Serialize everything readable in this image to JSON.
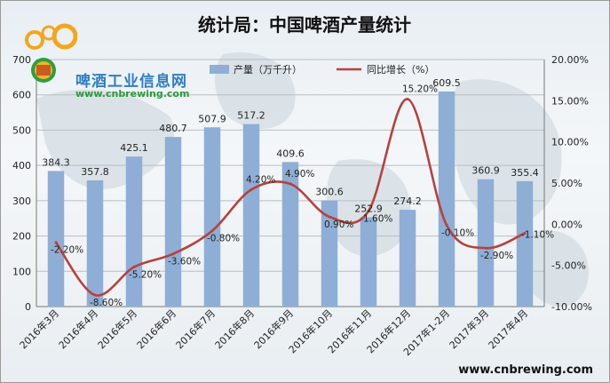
{
  "chart_data": {
    "type": "bar+line",
    "title": "统计局：中国啤酒产量统计",
    "categories": [
      "2016年3月",
      "2016年4月",
      "2016年5月",
      "2016年6月",
      "2016年7月",
      "2016年8月",
      "2016年9月",
      "2016年10月",
      "2016年11月",
      "2016年12月",
      "2017年1-2月",
      "2017年3月",
      "2017年4月"
    ],
    "series": [
      {
        "name": "产量（万千升）",
        "type": "bar",
        "axis": "left",
        "color": "#8eaed6",
        "values": [
          384.3,
          357.8,
          425.1,
          480.7,
          507.9,
          517.2,
          409.6,
          300.6,
          252.9,
          274.2,
          609.5,
          360.9,
          355.4
        ],
        "labels": [
          "384.3",
          "357.8",
          "425.1",
          "480.7",
          "507.9",
          "517.2",
          "409.6",
          "300.6",
          "252.9",
          "274.2",
          "609.5",
          "360.9",
          "355.4"
        ]
      },
      {
        "name": "同比增长（%）",
        "type": "line",
        "axis": "right",
        "color": "#b8413d",
        "values": [
          -2.2,
          -8.6,
          -5.2,
          -3.6,
          -0.8,
          4.2,
          4.9,
          0.9,
          1.6,
          15.2,
          -0.1,
          -2.9,
          -1.1
        ],
        "labels": [
          "-2.20%",
          "-8.60%",
          "-5.20%",
          "-3.60%",
          "-0.80%",
          "4.20%",
          "4.90%",
          "0.90%",
          "1.60%",
          "15.20%",
          "-0.10%",
          "-2.90%",
          "-1.10%"
        ]
      }
    ],
    "y_left": {
      "min": 0,
      "max": 700,
      "ticks": [
        "0",
        "100",
        "200",
        "300",
        "400",
        "500",
        "600",
        "700"
      ]
    },
    "y_right": {
      "min": -10,
      "max": 20,
      "ticks": [
        "-10.00%",
        "-5.00%",
        "0.00%",
        "5.00%",
        "10.00%",
        "15.00%",
        "20.00%"
      ]
    },
    "grid": true,
    "legend_position": "top"
  },
  "watermark": {
    "name": "啤酒工业信息网",
    "url": "www.cnbrewing.com"
  },
  "footer_url": "www.cnbrewing.com"
}
